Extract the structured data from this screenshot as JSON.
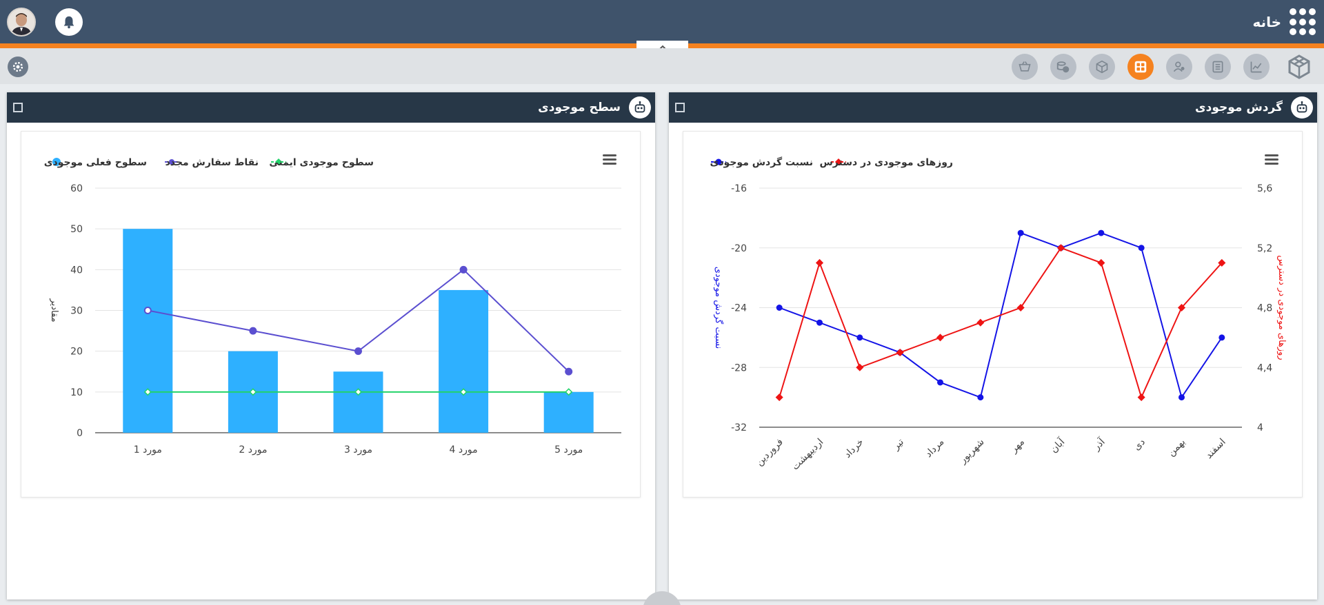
{
  "header": {
    "home_label": "خانه"
  },
  "toolbar": {
    "icons": [
      "basket-icon",
      "coins-icon",
      "box-icon",
      "dashboard-icon",
      "users-icon",
      "list-icon",
      "chart-icon",
      "logo-icon"
    ],
    "active": "dashboard-icon"
  },
  "colors": {
    "topbar": "#3f536b",
    "accent": "#f5821f",
    "panel_header": "#273747",
    "bar": "#2eb0ff",
    "reorder": "#5b4fd0",
    "safety": "#22d36a",
    "turnover": "#1414e6",
    "days": "#ee1414"
  },
  "panels": {
    "left": {
      "title": "سطح موجودی"
    },
    "right": {
      "title": "گردش موجودی"
    }
  },
  "chart_data": [
    {
      "type": "bar",
      "categories": [
        "مورد 1",
        "مورد 2",
        "مورد 3",
        "مورد 4",
        "مورد 5"
      ],
      "ylabel": "مقادیر",
      "ylim": [
        0,
        60
      ],
      "yticks": [
        0,
        10,
        20,
        30,
        40,
        50,
        60
      ],
      "legend_position": "top",
      "series": [
        {
          "name": "سطوح فعلی موجودی",
          "type": "bar",
          "values": [
            50,
            20,
            15,
            35,
            10
          ]
        },
        {
          "name": "نقاط سفارش مجدد",
          "type": "line",
          "values": [
            30,
            25,
            20,
            40,
            15
          ]
        },
        {
          "name": "سطوح موجودی ایمنی",
          "type": "line",
          "values": [
            10,
            10,
            10,
            10,
            10
          ]
        }
      ]
    },
    {
      "type": "line",
      "categories": [
        "فروردین",
        "اردیبهشت",
        "خرداد",
        "تیر",
        "مرداد",
        "شهریور",
        "مهر",
        "آبان",
        "آذر",
        "دی",
        "بهمن",
        "اسفند"
      ],
      "ylabel_left": "نسبت گردش موجودی",
      "ylabel_right": "روزهای موجودی در دسترس",
      "ylim_left": [
        -32,
        -16
      ],
      "yticks_left": [
        "-16",
        "-20",
        "-24",
        "-28",
        "-32"
      ],
      "ylim_right": [
        4,
        5.6
      ],
      "yticks_right": [
        "5,6",
        "5,2",
        "4,8",
        "4,4",
        "4"
      ],
      "legend_position": "top",
      "series": [
        {
          "name": "نسبت گردش موجودی",
          "axis": "left",
          "values": [
            -24,
            -25,
            -26,
            -27,
            -29,
            -30,
            -19,
            -20,
            -19,
            -20,
            -30,
            -26
          ]
        },
        {
          "name": "روزهای موجودی در دسترس",
          "axis": "right",
          "values": [
            4.2,
            5.1,
            4.4,
            4.5,
            4.6,
            4.7,
            4.8,
            5.2,
            5.1,
            4.2,
            4.8,
            5.1
          ]
        }
      ]
    }
  ]
}
